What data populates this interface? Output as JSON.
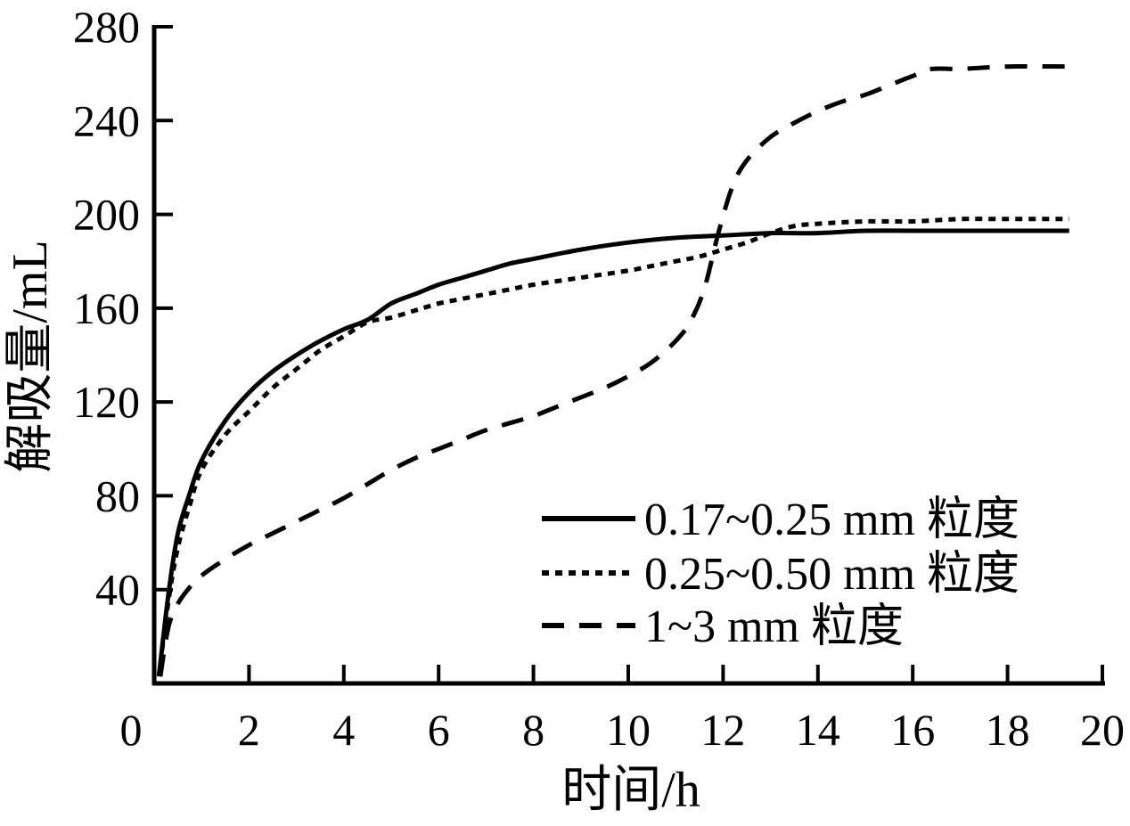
{
  "chart_data": {
    "type": "line",
    "title": "",
    "xlabel": "时间/h",
    "ylabel": "解吸量/mL",
    "xlim": [
      0,
      20
    ],
    "ylim": [
      0,
      280
    ],
    "xticks": [
      0,
      2,
      4,
      6,
      8,
      10,
      12,
      14,
      16,
      18,
      20
    ],
    "yticks": [
      40,
      80,
      120,
      160,
      200,
      240,
      280
    ],
    "grid": false,
    "legend_position": "inside-lower-right",
    "series": [
      {
        "name": "0.17~0.25 mm 粒度",
        "line_style": "solid",
        "color": "#000000",
        "x": [
          0.1,
          0.3,
          0.5,
          0.75,
          1,
          1.5,
          2,
          2.5,
          3,
          3.5,
          4,
          4.5,
          5,
          5.5,
          6,
          6.5,
          7,
          7.5,
          8,
          9,
          10,
          11,
          12,
          13,
          14,
          15,
          16,
          17,
          18,
          19.3
        ],
        "y": [
          3,
          38,
          64,
          81,
          95,
          112,
          124,
          133,
          140,
          146,
          151,
          155,
          162,
          166,
          170,
          173,
          176,
          179,
          181,
          185,
          188,
          190,
          191,
          192,
          192,
          193,
          193,
          193,
          193,
          193
        ]
      },
      {
        "name": "0.25~0.50 mm 粒度",
        "line_style": "dotted",
        "color": "#000000",
        "x": [
          0.1,
          0.3,
          0.5,
          0.75,
          1,
          1.5,
          2,
          2.5,
          3,
          3.5,
          4,
          4.5,
          5,
          5.5,
          6,
          6.5,
          7,
          7.5,
          8,
          9,
          10,
          10.5,
          11,
          11.5,
          12,
          12.5,
          13,
          13.5,
          14,
          15,
          16,
          17,
          18,
          19.3
        ],
        "y": [
          3,
          35,
          58,
          76,
          91,
          106,
          116,
          126,
          134,
          142,
          148,
          154,
          156,
          159,
          162,
          164,
          166,
          168,
          170,
          173,
          176,
          178,
          180,
          182,
          185,
          188,
          192,
          195,
          196,
          197,
          197,
          198,
          198,
          198
        ]
      },
      {
        "name": "1~3 mm 粒度",
        "line_style": "dashed",
        "color": "#000000",
        "x": [
          0.13,
          0.3,
          0.5,
          0.75,
          1,
          1.5,
          2,
          2.5,
          3,
          3.5,
          4,
          4.5,
          5,
          5.5,
          6,
          6.5,
          7,
          7.5,
          8,
          8.5,
          9,
          9.5,
          10,
          10.5,
          11,
          11.3,
          11.6,
          11.9,
          12.2,
          12.5,
          13,
          13.5,
          14,
          14.5,
          15,
          15.5,
          16,
          16.4,
          17,
          18,
          19.3
        ],
        "y": [
          3,
          24,
          34,
          41,
          46,
          53,
          59,
          64,
          69,
          74,
          79,
          85,
          91,
          96,
          100,
          104,
          108,
          111,
          114,
          118,
          122,
          126,
          131,
          137,
          146,
          154,
          168,
          192,
          212,
          223,
          233,
          239,
          244,
          248,
          251,
          255,
          259,
          262,
          262,
          263,
          263
        ]
      }
    ]
  },
  "colors": {
    "background": "#ffffff",
    "axis": "#000000",
    "text": "#000000"
  }
}
